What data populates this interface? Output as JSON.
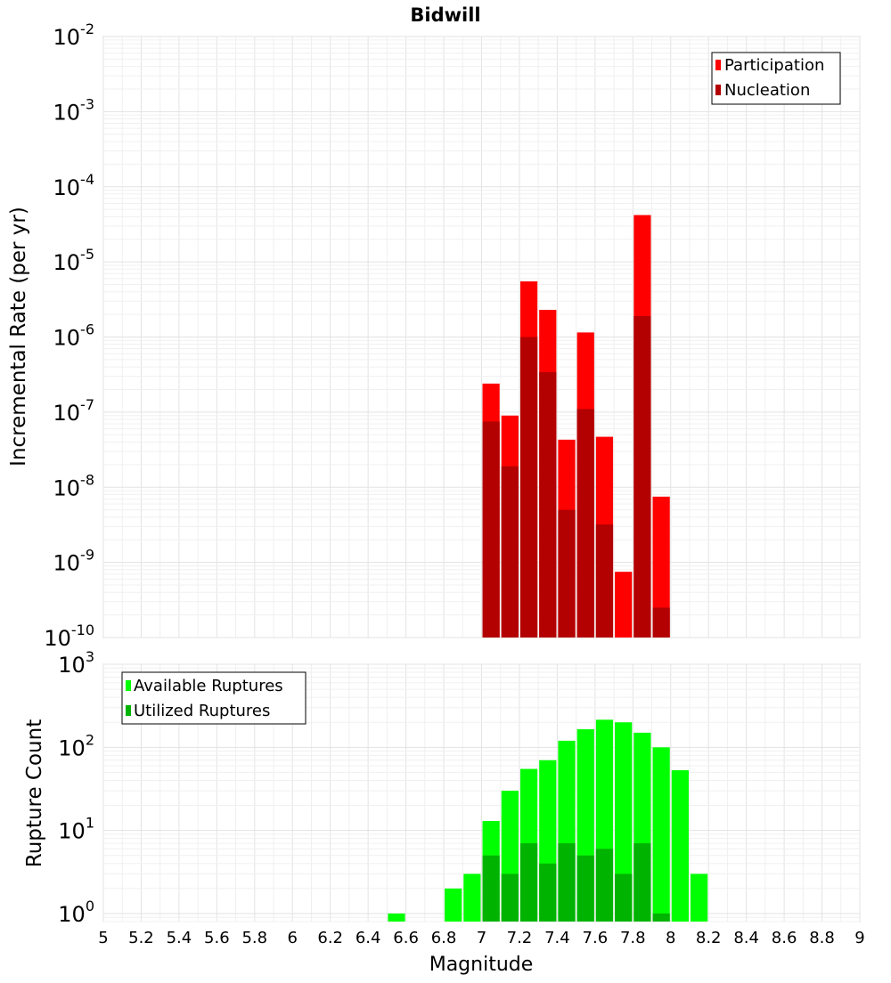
{
  "chart_data": [
    {
      "type": "bar",
      "title": "Bidwill",
      "xlabel": "",
      "ylabel": "Incremental Rate (per yr)",
      "y_scale": "log",
      "ylim": [
        1e-10,
        0.01
      ],
      "xlim": [
        5,
        9
      ],
      "bar_width": 0.1,
      "grid": true,
      "legend_position": "top-right",
      "y_ticks": [
        {
          "base": "10",
          "exp": "-10",
          "value": 1e-10
        },
        {
          "base": "10",
          "exp": "-9",
          "value": 1e-09
        },
        {
          "base": "10",
          "exp": "-8",
          "value": 1e-08
        },
        {
          "base": "10",
          "exp": "-7",
          "value": 1e-07
        },
        {
          "base": "10",
          "exp": "-6",
          "value": 1e-06
        },
        {
          "base": "10",
          "exp": "-5",
          "value": 1e-05
        },
        {
          "base": "10",
          "exp": "-4",
          "value": 0.0001
        },
        {
          "base": "10",
          "exp": "-3",
          "value": 0.001
        },
        {
          "base": "10",
          "exp": "-2",
          "value": 0.01
        }
      ],
      "x": [
        7.05,
        7.15,
        7.25,
        7.35,
        7.45,
        7.55,
        7.65,
        7.75,
        7.85,
        7.95
      ],
      "series": [
        {
          "name": "Participation",
          "color": "#ff0000",
          "values": [
            2.4e-07,
            9e-08,
            5.5e-06,
            2.3e-06,
            4.3e-08,
            1.15e-06,
            4.7e-08,
            7.5e-10,
            4.2e-05,
            7.5e-09
          ]
        },
        {
          "name": "Nucleation",
          "color": "#b30000",
          "values": [
            7.5e-08,
            1.9e-08,
            1e-06,
            3.4e-07,
            5e-09,
            1.1e-07,
            3.2e-09,
            null,
            1.9e-06,
            2.5e-10
          ]
        }
      ]
    },
    {
      "type": "bar",
      "title": "",
      "xlabel": "Magnitude",
      "ylabel": "Rupture Count",
      "y_scale": "log",
      "ylim": [
        0.8,
        1000
      ],
      "xlim": [
        5,
        9
      ],
      "bar_width": 0.1,
      "grid": true,
      "legend_position": "top-left",
      "y_ticks": [
        {
          "base": "10",
          "exp": "0",
          "value": 1
        },
        {
          "base": "10",
          "exp": "1",
          "value": 10
        },
        {
          "base": "10",
          "exp": "2",
          "value": 100
        },
        {
          "base": "10",
          "exp": "3",
          "value": 1000
        }
      ],
      "x_tick_labels": [
        "5",
        "5.2",
        "5.4",
        "5.6",
        "5.8",
        "6",
        "6.2",
        "6.4",
        "6.6",
        "6.8",
        "7",
        "7.2",
        "7.4",
        "7.6",
        "7.8",
        "8",
        "8.2",
        "8.4",
        "8.6",
        "8.8",
        "9"
      ],
      "x": [
        6.55,
        6.85,
        6.95,
        7.05,
        7.15,
        7.25,
        7.35,
        7.45,
        7.55,
        7.65,
        7.75,
        7.85,
        7.95,
        8.05,
        8.15
      ],
      "series": [
        {
          "name": "Available Ruptures",
          "color": "#00ff00",
          "values": [
            1,
            2,
            3,
            13,
            30,
            55,
            70,
            120,
            165,
            215,
            200,
            150,
            100,
            53,
            3
          ]
        },
        {
          "name": "Utilized Ruptures",
          "color": "#00b300",
          "values": [
            null,
            null,
            null,
            5,
            3,
            7,
            4,
            7,
            5,
            6,
            3,
            7,
            1,
            null,
            null
          ]
        }
      ]
    }
  ]
}
